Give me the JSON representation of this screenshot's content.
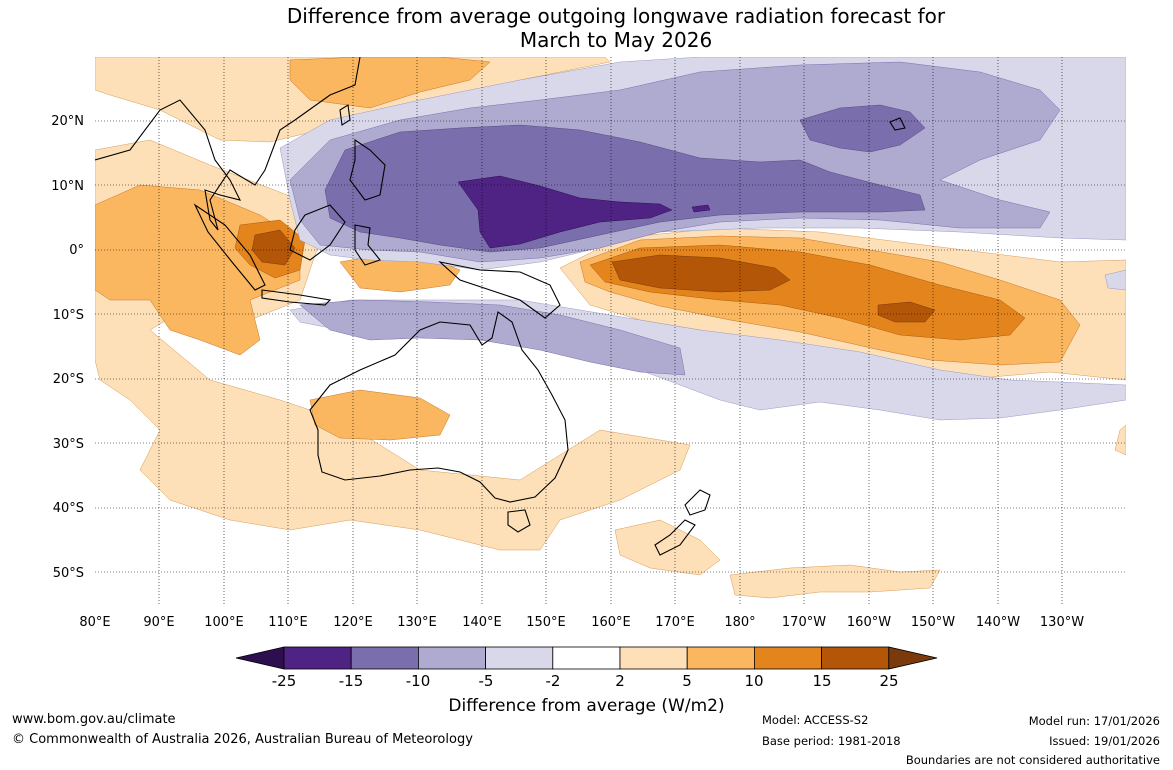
{
  "title": {
    "line1": "Difference from average outgoing longwave radiation forecast for",
    "line2": "March to May 2026"
  },
  "axes": {
    "lon_labels": [
      "80°E",
      "90°E",
      "100°E",
      "110°E",
      "120°E",
      "130°E",
      "140°E",
      "150°E",
      "160°E",
      "170°E",
      "180°",
      "170°W",
      "160°W",
      "150°W",
      "140°W",
      "130°W"
    ],
    "lat_labels": [
      "20°N",
      "10°N",
      "0°",
      "10°S",
      "20°S",
      "30°S",
      "40°S",
      "50°S"
    ]
  },
  "colorbar": {
    "title": "Difference from average (W/m2)",
    "labels": [
      "-25",
      "-15",
      "-10",
      "-5",
      "-2",
      "2",
      "5",
      "10",
      "15",
      "25"
    ],
    "colors": [
      "#2d0f4f",
      "#4f2383",
      "#7a6fac",
      "#aeaad0",
      "#d8d8ea",
      "#ffffff",
      "#fde0b7",
      "#fbb660",
      "#e3841c",
      "#b35607",
      "#7a3a0c"
    ]
  },
  "footer": {
    "website": "www.bom.gov.au/climate",
    "copyright": "© Commonwealth of Australia 2026, Australian Bureau of Meteorology",
    "model": "Model: ACCESS-S2",
    "base_period": "Base period: 1981-2018",
    "model_run": "Model run: 17/01/2026",
    "issued": "Issued: 19/01/2026",
    "disclaimer": "Boundaries are not considered authoritative"
  }
}
